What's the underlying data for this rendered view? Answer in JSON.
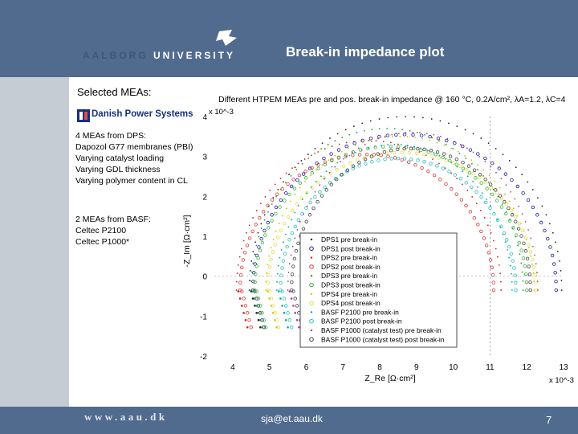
{
  "header": {
    "logo_text_1": "AALBORG",
    "logo_text_2": "UNIVERSITY",
    "title": "Break-in impedance plot"
  },
  "left": {
    "heading": "Selected MEAs:",
    "dps_logo": "Danish Power Systems",
    "dps_lines": [
      "4 MEAs from DPS:",
      "Dapozol G77 membranes (PBI)",
      "Varying catalyst loading",
      "Varying GDL thickness",
      "Varying polymer content in CL"
    ],
    "basf_lines": [
      "2 MEAs from BASF:",
      "Celtec P2100",
      "Celtec P1000*"
    ]
  },
  "chart_data": {
    "type": "scatter",
    "title": "Different HTPEM MEAs pre and pos. break-in impedance @ 160 °C, 0.2A/cm², λA=1.2, λC=4",
    "xlabel": "Z_Re [Ω·cm²]",
    "ylabel": "-Z_Im [Ω·cm²]",
    "x_scale_label": "x 10^-3",
    "y_scale_label": "x 10^-3",
    "xlim": [
      3.5,
      13
    ],
    "ylim": [
      -2,
      4
    ],
    "xticks": [
      4,
      5,
      6,
      7,
      8,
      9,
      10,
      11,
      12,
      13
    ],
    "yticks": [
      -2,
      -1,
      0,
      1,
      2,
      3,
      4
    ],
    "series": [
      {
        "name": "DPS1 pre break-in",
        "marker": "dot",
        "color": "#222222",
        "start": 4.45,
        "end": 12.95,
        "peak": 4.0
      },
      {
        "name": "DPS1 post break-in",
        "marker": "circle",
        "color": "#1a1aa0",
        "start": 4.55,
        "end": 12.8,
        "peak": 3.55
      },
      {
        "name": "DPS2 pre break-in",
        "marker": "dot",
        "color": "#cc2222",
        "start": 4.1,
        "end": 11.3,
        "peak": 3.4
      },
      {
        "name": "DPS2 post break-in",
        "marker": "circle",
        "color": "#d93a3a",
        "start": 4.2,
        "end": 11.1,
        "peak": 3.05
      },
      {
        "name": "DPS3 pre break-in",
        "marker": "dot",
        "color": "#2a9d2a",
        "start": 4.5,
        "end": 11.9,
        "peak": 3.7
      },
      {
        "name": "DPS3 post break-in",
        "marker": "circle",
        "color": "#3cb43c",
        "start": 4.6,
        "end": 12.0,
        "peak": 3.25
      },
      {
        "name": "DPS4 pre break-in",
        "marker": "dot",
        "color": "#c4c400",
        "start": 4.9,
        "end": 12.2,
        "peak": 3.5
      },
      {
        "name": "DPS4 post break-in",
        "marker": "circle",
        "color": "#e0e040",
        "start": 4.95,
        "end": 12.25,
        "peak": 3.1
      },
      {
        "name": "BASF P2100 pre break-in",
        "marker": "dot",
        "color": "#00a8a8",
        "start": 5.2,
        "end": 11.6,
        "peak": 3.3
      },
      {
        "name": "BASF P2100 post break-in",
        "marker": "circle",
        "color": "#28c0c0",
        "start": 5.3,
        "end": 11.7,
        "peak": 2.95
      },
      {
        "name": "BASF P1000 (catalyst test) pre break-in",
        "marker": "dot",
        "color": "#b03ab0",
        "start": 5.5,
        "end": 12.3,
        "peak": 3.6
      },
      {
        "name": "BASF P1000 (catalyst test) post break-in",
        "marker": "circle",
        "color": "#444444",
        "start": 5.6,
        "end": 12.1,
        "peak": 3.2
      }
    ]
  },
  "footer": {
    "url": "www.aau.dk",
    "email": "sja@et.aau.dk",
    "page": "7"
  }
}
